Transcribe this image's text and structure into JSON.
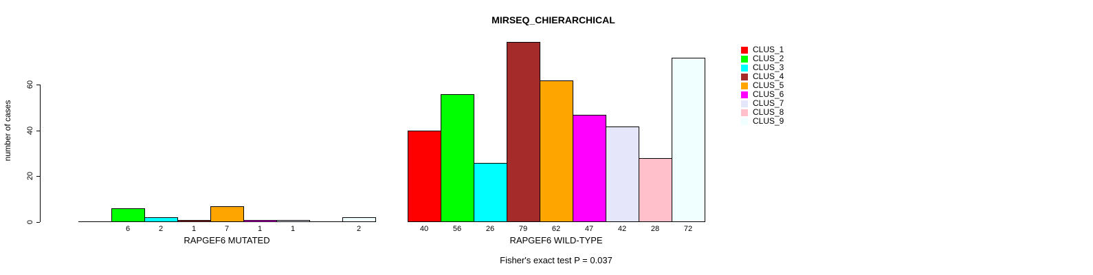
{
  "page": {
    "background_color": "#ffffff",
    "text_color": "#000000"
  },
  "chart_data": {
    "type": "bar",
    "title": "MIRSEQ_CHIERARCHICAL",
    "ylabel": "number of cases",
    "xlabel": "",
    "ylim": [
      0,
      81
    ],
    "yticks": [
      "0",
      "20",
      "40",
      "60"
    ],
    "grid": false,
    "legend_position": "right",
    "bar_border_color": "#000000",
    "legend": [
      {
        "label": "CLUS_1",
        "color": "#FF0000"
      },
      {
        "label": "CLUS_2",
        "color": "#00FF00"
      },
      {
        "label": "CLUS_3",
        "color": "#00FFFF"
      },
      {
        "label": "CLUS_4",
        "color": "#A52A2A"
      },
      {
        "label": "CLUS_5",
        "color": "#FFA500"
      },
      {
        "label": "CLUS_6",
        "color": "#FF00FF"
      },
      {
        "label": "CLUS_7",
        "color": "#E6E6FA"
      },
      {
        "label": "CLUS_8",
        "color": "#FFC0CB"
      },
      {
        "label": "CLUS_9",
        "color": "#F0FFFF"
      }
    ],
    "groups": [
      {
        "label": "RAPGEF6 MUTATED",
        "values": [
          0,
          6,
          2,
          1,
          7,
          1,
          1,
          0,
          2
        ]
      },
      {
        "label": "RAPGEF6 WILD-TYPE",
        "values": [
          40,
          56,
          26,
          79,
          62,
          47,
          42,
          28,
          72
        ]
      }
    ],
    "annotation": "Fisher's exact test P = 0.037"
  }
}
